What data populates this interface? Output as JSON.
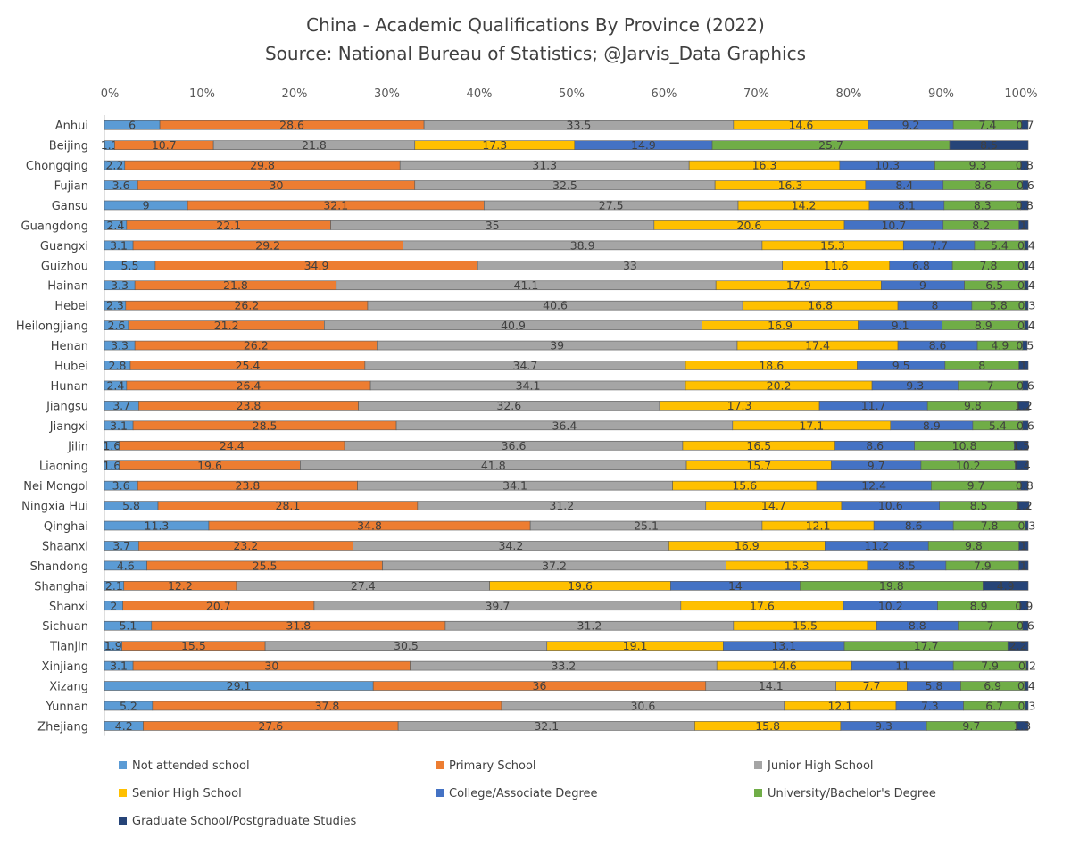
{
  "chart_data": {
    "type": "bar",
    "orientation": "horizontal",
    "stacked": "percent",
    "title": "China - Academic Qualifications By Province (2022)",
    "subtitle": "Source: National Bureau of Statistics; @Jarvis_Data Graphics",
    "xlim": [
      0,
      100
    ],
    "x_ticks": [
      "0%",
      "10%",
      "20%",
      "30%",
      "40%",
      "50%",
      "60%",
      "70%",
      "80%",
      "90%",
      "100%"
    ],
    "legend_position": "bottom",
    "categories": [
      "Anhui",
      "Beijing",
      "Chongqing",
      "Fujian",
      "Gansu",
      "Guangdong",
      "Guangxi",
      "Guizhou",
      "Hainan",
      "Hebei",
      "Heilongjiang",
      "Henan",
      "Hubei",
      "Hunan",
      "Jiangsu",
      "Jiangxi",
      "Jilin",
      "Liaoning",
      "Nei Mongol",
      "Ningxia Hui",
      "Qinghai",
      "Shaanxi",
      "Shandong",
      "Shanghai",
      "Shanxi",
      "Sichuan",
      "Tianjin",
      "Xinjiang",
      "Xizang",
      "Yunnan",
      "Zhejiang"
    ],
    "series": [
      {
        "name": "Not attended school",
        "color": "#5b9bd5",
        "values": [
          6,
          1.1,
          2.2,
          3.6,
          9,
          2.4,
          3.1,
          5.5,
          3.3,
          2.3,
          2.6,
          3.3,
          2.8,
          2.4,
          3.7,
          3.1,
          1.6,
          1.6,
          3.6,
          5.8,
          11.3,
          3.7,
          4.6,
          2.1,
          2,
          5.1,
          1.9,
          3.1,
          29.1,
          5.2,
          4.2
        ]
      },
      {
        "name": "Primary School",
        "color": "#ed7d31",
        "values": [
          28.6,
          10.7,
          29.8,
          30,
          32.1,
          22.1,
          29.2,
          34.9,
          21.8,
          26.2,
          21.2,
          26.2,
          25.4,
          26.4,
          23.8,
          28.5,
          24.4,
          19.6,
          23.8,
          28.1,
          34.8,
          23.2,
          25.5,
          12.2,
          20.7,
          31.8,
          15.5,
          30,
          36,
          37.8,
          27.6
        ]
      },
      {
        "name": "Junior High School",
        "color": "#a5a5a5",
        "values": [
          33.5,
          21.8,
          31.3,
          32.5,
          27.5,
          35,
          38.9,
          33,
          41.1,
          40.6,
          40.9,
          39,
          34.7,
          34.1,
          32.6,
          36.4,
          36.6,
          41.8,
          34.1,
          31.2,
          25.1,
          34.2,
          37.2,
          27.4,
          39.7,
          31.2,
          30.5,
          33.2,
          14.1,
          30.6,
          32.1
        ]
      },
      {
        "name": "Senior High School",
        "color": "#ffc000",
        "values": [
          14.6,
          17.3,
          16.3,
          16.3,
          14.2,
          20.6,
          15.3,
          11.6,
          17.9,
          16.8,
          16.9,
          17.4,
          18.6,
          20.2,
          17.3,
          17.1,
          16.5,
          15.7,
          15.6,
          14.7,
          12.1,
          16.9,
          15.3,
          19.6,
          17.6,
          15.5,
          19.1,
          14.6,
          7.7,
          12.1,
          15.8
        ]
      },
      {
        "name": "College/Associate Degree",
        "color": "#4472c4",
        "values": [
          9.2,
          14.9,
          10.3,
          8.4,
          8.1,
          10.7,
          7.7,
          6.8,
          9,
          8,
          9.1,
          8.6,
          9.5,
          9.3,
          11.7,
          8.9,
          8.6,
          9.7,
          12.4,
          10.6,
          8.6,
          11.2,
          8.5,
          14,
          10.2,
          8.8,
          13.1,
          11,
          5.8,
          7.3,
          9.3
        ]
      },
      {
        "name": "University/Bachelor's Degree",
        "color": "#70ad47",
        "values": [
          7.4,
          25.7,
          9.3,
          8.6,
          8.3,
          8.2,
          5.4,
          7.8,
          6.5,
          5.8,
          8.9,
          4.9,
          8,
          7,
          9.8,
          5.4,
          10.8,
          10.2,
          9.7,
          8.5,
          7.8,
          9.8,
          7.9,
          19.8,
          8.9,
          7,
          17.7,
          7.9,
          6.9,
          6.7,
          9.7
        ]
      },
      {
        "name": "Graduate School/Postgraduate Studies",
        "color": "#264478",
        "values": [
          0.7,
          8.5,
          0.8,
          0.6,
          0.8,
          1,
          0.4,
          0.4,
          0.4,
          0.3,
          0.4,
          0.5,
          1,
          0.6,
          1.2,
          0.6,
          1.5,
          1.4,
          0.8,
          1.2,
          0.3,
          1,
          1,
          4.9,
          0.9,
          0.6,
          2.2,
          0.2,
          0.4,
          0.3,
          1.3
        ]
      }
    ]
  }
}
